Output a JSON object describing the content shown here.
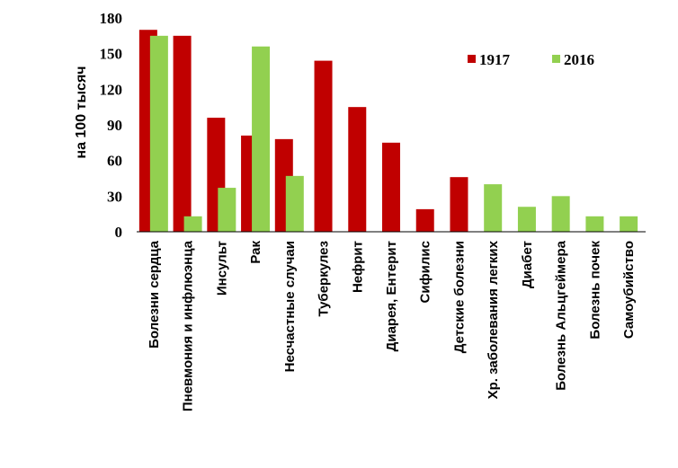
{
  "chart_data": {
    "type": "bar",
    "ylabel": "на 100 тысяч",
    "xlabel": "",
    "title": "",
    "ylim": [
      0,
      180
    ],
    "yticks": [
      0,
      30,
      60,
      90,
      120,
      150,
      180
    ],
    "grid": false,
    "legend_position": "top-right",
    "categories": [
      "Болезни сердца",
      "Пневмония и инфлюэнца",
      "Инсульт",
      "Рак",
      "Несчастные случаи",
      "Туберкулез",
      "Нефрит",
      "Диарея, Ентерит",
      "Сифилис",
      "Детские болезни",
      "Хр. заболевания легких",
      "Диабет",
      "Болезнь Альцгеймера",
      "Болезнь почек",
      "Самоубийство"
    ],
    "series": [
      {
        "name": "1917",
        "color": "#c00000",
        "values": [
          170,
          165,
          96,
          81,
          78,
          144,
          105,
          75,
          19,
          46,
          null,
          null,
          null,
          null,
          null
        ]
      },
      {
        "name": "2016",
        "color": "#92d050",
        "values": [
          165,
          13,
          37,
          156,
          47,
          null,
          null,
          null,
          null,
          null,
          40,
          21,
          30,
          13,
          13
        ]
      }
    ]
  }
}
